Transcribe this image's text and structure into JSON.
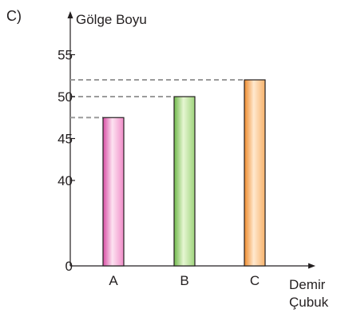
{
  "chart_data": {
    "type": "bar",
    "option_label": "C)",
    "ylabel": "Gölge Boyu",
    "xlabel_lines": [
      "Demir",
      "Çubuk"
    ],
    "categories": [
      "A",
      "B",
      "C"
    ],
    "values": [
      47.5,
      50,
      52
    ],
    "y_ticks": [
      {
        "value": 0,
        "label": "0"
      },
      {
        "value": 40,
        "label": "40"
      },
      {
        "value": 45,
        "label": "45"
      },
      {
        "value": 50,
        "label": "50"
      },
      {
        "value": 55,
        "label": "55"
      }
    ],
    "axis_break": {
      "from": 0,
      "to": 40
    },
    "reference_lines": true,
    "grid": false,
    "colors": {
      "A": {
        "light": "#fde3f1",
        "mid": "#f08cc8",
        "dark": "#d84ea4"
      },
      "B": {
        "light": "#e6f6d2",
        "mid": "#9fd47c",
        "dark": "#6fb84a"
      },
      "C": {
        "light": "#ffe9cf",
        "mid": "#f7b26a",
        "dark": "#ee8b2c"
      },
      "axis": "#231f20",
      "dashed": "#9b9b9b"
    }
  }
}
